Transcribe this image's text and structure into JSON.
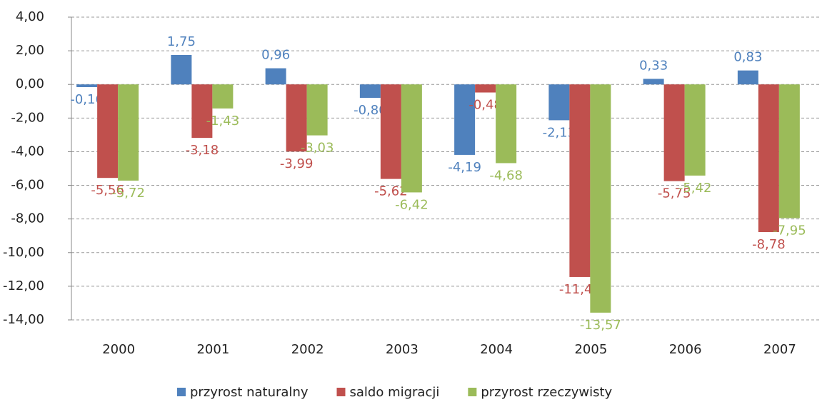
{
  "chart_data": {
    "type": "bar",
    "categories": [
      "2000",
      "2001",
      "2002",
      "2003",
      "2004",
      "2005",
      "2006",
      "2007"
    ],
    "series": [
      {
        "name": "przyrost naturalny",
        "color": "#4f81bd",
        "values": [
          -0.16,
          1.75,
          0.96,
          -0.8,
          -4.19,
          -2.13,
          0.33,
          0.83
        ],
        "value_labels": [
          "-0,16",
          "1,75",
          "0,96",
          "-0,80",
          "-4,19",
          "-2,13",
          "0,33",
          "0,83"
        ]
      },
      {
        "name": "saldo migracji",
        "color": "#c0504d",
        "values": [
          -5.56,
          -3.18,
          -3.99,
          -5.62,
          -0.48,
          -11.45,
          -5.75,
          -8.78
        ],
        "value_labels": [
          "-5,56",
          "-3,18",
          "-3,99",
          "-5,62",
          "-0,48",
          "-11,45",
          "-5,75",
          "-8,78"
        ]
      },
      {
        "name": "przyrost rzeczywisty",
        "color": "#9bbb59",
        "values": [
          -5.72,
          -1.43,
          -3.03,
          -6.42,
          -4.68,
          -13.57,
          -5.42,
          -7.95
        ],
        "value_labels": [
          "-5,72",
          "-1,43",
          "-3,03",
          "-6,42",
          "-4,68",
          "-13,57",
          "-5,42",
          "-7,95"
        ]
      }
    ],
    "ylim": [
      -14,
      4
    ],
    "yticks": [
      {
        "value": 4,
        "label": "4,00"
      },
      {
        "value": 2,
        "label": "2,00"
      },
      {
        "value": 0,
        "label": "0,00"
      },
      {
        "value": -2,
        "label": "-2,00"
      },
      {
        "value": -4,
        "label": "-4,00"
      },
      {
        "value": -6,
        "label": "-6,00"
      },
      {
        "value": -8,
        "label": "-8,00"
      },
      {
        "value": -10,
        "label": "-10,00"
      },
      {
        "value": -12,
        "label": "-12,00"
      },
      {
        "value": -14,
        "label": "-14,00"
      }
    ],
    "grid": true,
    "legend": "bottom"
  }
}
